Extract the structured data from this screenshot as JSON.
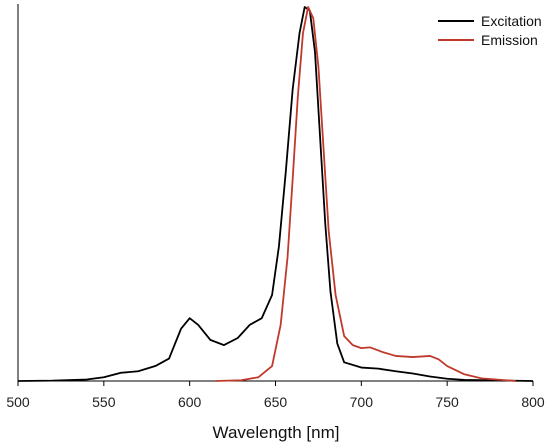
{
  "chart_data": {
    "type": "line",
    "title": "",
    "xlabel": "Wavelength [nm]",
    "ylabel": "",
    "xlim": [
      500,
      800
    ],
    "ylim": [
      0,
      1.0
    ],
    "grid": false,
    "legend_position": "top-right",
    "x_ticks": [
      "500",
      "550",
      "600",
      "650",
      "700",
      "750",
      "800"
    ],
    "series": [
      {
        "name": "Excitation",
        "color": "#000000",
        "points": [
          [
            500,
            0.0
          ],
          [
            520,
            0.001
          ],
          [
            540,
            0.004
          ],
          [
            550,
            0.01
          ],
          [
            560,
            0.022
          ],
          [
            570,
            0.026
          ],
          [
            580,
            0.04
          ],
          [
            588,
            0.06
          ],
          [
            595,
            0.14
          ],
          [
            600,
            0.168
          ],
          [
            605,
            0.15
          ],
          [
            612,
            0.11
          ],
          [
            620,
            0.096
          ],
          [
            628,
            0.115
          ],
          [
            635,
            0.15
          ],
          [
            642,
            0.168
          ],
          [
            648,
            0.23
          ],
          [
            652,
            0.36
          ],
          [
            656,
            0.56
          ],
          [
            660,
            0.78
          ],
          [
            664,
            0.93
          ],
          [
            667,
            1.0
          ],
          [
            670,
            0.99
          ],
          [
            673,
            0.88
          ],
          [
            676,
            0.65
          ],
          [
            679,
            0.42
          ],
          [
            682,
            0.24
          ],
          [
            686,
            0.1
          ],
          [
            690,
            0.05
          ],
          [
            700,
            0.036
          ],
          [
            710,
            0.033
          ],
          [
            720,
            0.026
          ],
          [
            730,
            0.02
          ],
          [
            740,
            0.012
          ],
          [
            750,
            0.006
          ],
          [
            760,
            0.003
          ],
          [
            800,
            0.0
          ]
        ]
      },
      {
        "name": "Emission",
        "color": "#c0392b",
        "points": [
          [
            615,
            0.0
          ],
          [
            630,
            0.002
          ],
          [
            640,
            0.01
          ],
          [
            648,
            0.04
          ],
          [
            653,
            0.15
          ],
          [
            657,
            0.33
          ],
          [
            660,
            0.54
          ],
          [
            663,
            0.76
          ],
          [
            666,
            0.93
          ],
          [
            669,
            1.0
          ],
          [
            672,
            0.97
          ],
          [
            675,
            0.84
          ],
          [
            678,
            0.62
          ],
          [
            681,
            0.4
          ],
          [
            685,
            0.23
          ],
          [
            690,
            0.12
          ],
          [
            695,
            0.096
          ],
          [
            700,
            0.088
          ],
          [
            705,
            0.09
          ],
          [
            712,
            0.078
          ],
          [
            720,
            0.067
          ],
          [
            730,
            0.064
          ],
          [
            740,
            0.067
          ],
          [
            745,
            0.058
          ],
          [
            750,
            0.04
          ],
          [
            760,
            0.018
          ],
          [
            770,
            0.007
          ],
          [
            790,
            0.0
          ]
        ]
      }
    ]
  }
}
